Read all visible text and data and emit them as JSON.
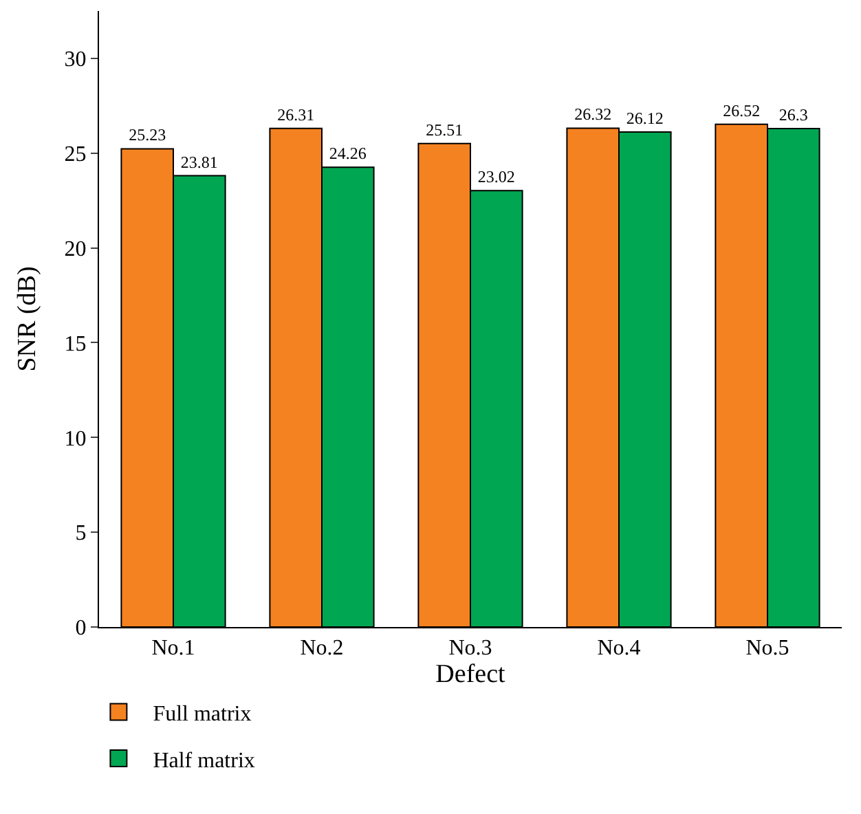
{
  "chart_data": {
    "type": "bar",
    "xlabel": "Defect",
    "ylabel": "SNR (dB)",
    "categories": [
      "No.1",
      "No.2",
      "No.3",
      "No.4",
      "No.5"
    ],
    "series": [
      {
        "name": "Full matrix",
        "color": "#f58220",
        "values": [
          25.23,
          26.31,
          25.51,
          26.32,
          26.52
        ]
      },
      {
        "name": "Half matrix",
        "color": "#00a651",
        "values": [
          23.81,
          24.26,
          23.02,
          26.12,
          26.3
        ]
      }
    ],
    "ylim": [
      0,
      32.5
    ],
    "yticks": [
      0,
      5,
      10,
      15,
      20,
      25,
      30
    ],
    "data_labels": true,
    "legend": "bottom left",
    "grid": false
  }
}
